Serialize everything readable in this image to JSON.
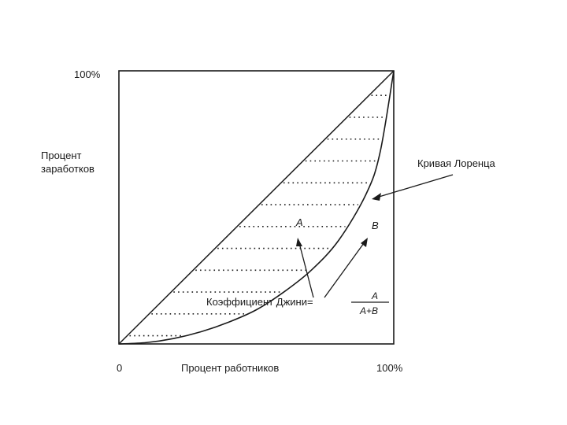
{
  "chart_data": {
    "type": "line",
    "x_axis": {
      "label": "Процент работников",
      "tick_min": "0",
      "tick_max": "100%",
      "range": [
        0,
        100
      ]
    },
    "y_axis": {
      "label_line1": "Процент",
      "label_line2": "заработков",
      "tick_max": "100%",
      "range": [
        0,
        100
      ]
    },
    "series": [
      {
        "name": "",
        "kind": "equality-diagonal",
        "x": [
          0,
          100
        ],
        "y": [
          0,
          100
        ]
      },
      {
        "name": "Кривая Лоренца",
        "kind": "lorenz-curve",
        "x": [
          0,
          10,
          20,
          30,
          40,
          50,
          60,
          70,
          80,
          90,
          95,
          100
        ],
        "y": [
          0,
          0.5,
          2,
          4.5,
          8,
          12.5,
          19,
          27,
          38,
          55,
          70,
          100
        ]
      }
    ],
    "annotations": {
      "lorenz_label": "Кривая Лоренца",
      "area_a": "A",
      "area_b": "B",
      "gini_text": "Коэффициент Джини=",
      "gini_numerator": "A",
      "gini_denominator": "A+B"
    },
    "hatch_levels_percent": [
      3,
      11,
      19,
      27,
      35,
      43,
      51,
      59,
      67,
      75,
      83,
      91
    ],
    "grid": false,
    "legend": "none"
  }
}
